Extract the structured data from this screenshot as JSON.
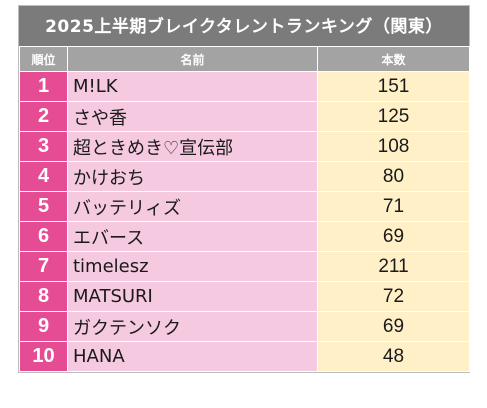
{
  "title": "2025上半期ブレイクタレントランキング（関東）",
  "headers": {
    "rank": "順位",
    "name": "名前",
    "count": "本数"
  },
  "rows": [
    {
      "rank": "1",
      "name": "M!LK",
      "count": "151"
    },
    {
      "rank": "2",
      "name": "さや香",
      "count": "125"
    },
    {
      "rank": "3",
      "name": "超ときめき♡宣伝部",
      "count": "108"
    },
    {
      "rank": "4",
      "name": "かけおち",
      "count": "80"
    },
    {
      "rank": "5",
      "name": "バッテリィズ",
      "count": "71"
    },
    {
      "rank": "6",
      "name": "エバース",
      "count": "69"
    },
    {
      "rank": "7",
      "name": "timelesz",
      "count": "211"
    },
    {
      "rank": "8",
      "name": "MATSURI",
      "count": "72"
    },
    {
      "rank": "9",
      "name": "ガクテンソク",
      "count": "69"
    },
    {
      "rank": "10",
      "name": "HANA",
      "count": "48"
    }
  ]
}
